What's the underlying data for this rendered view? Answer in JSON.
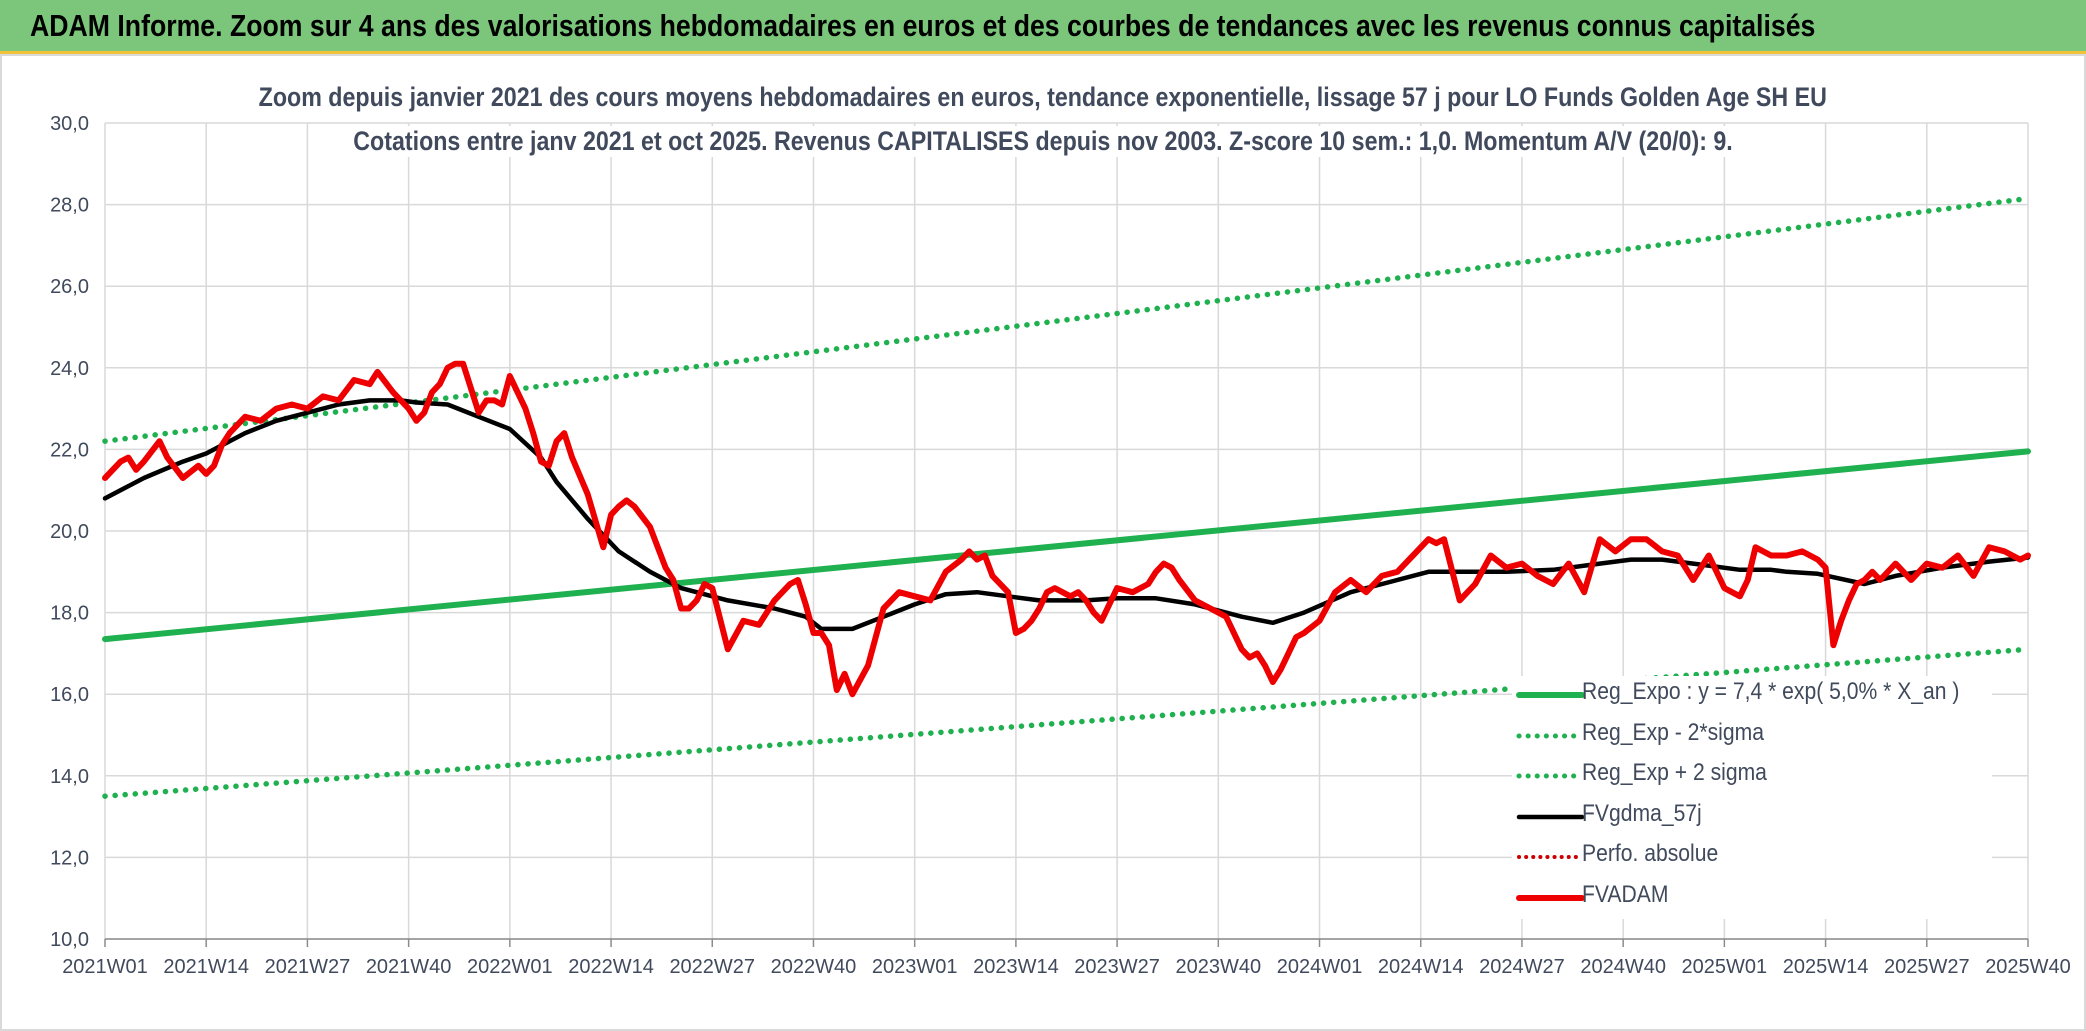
{
  "banner": {
    "title": "ADAM Informe. Zoom sur 4 ans des valorisations hebdomadaires en euros et des courbes de tendances avec les revenus connus capitalisés"
  },
  "colors": {
    "banner_bg": "#7bc67b",
    "banner_accent": "#f2c23a",
    "trend": "#1fb04f",
    "fvadam": "#ee0000",
    "fvgdma": "#000000",
    "perfo": "#cc0000",
    "grid": "#d9d9d9",
    "text": "#404a5c"
  },
  "chart_data": {
    "type": "line",
    "title": "Zoom depuis janvier 2021 des cours moyens hebdomadaires en euros, tendance exponentielle, lissage 57 j pour LO Funds Golden Age SH EU",
    "subtitle": "Cotations entre janv 2021 et oct 2025. Revenus CAPITALISES depuis nov 2003. Z-score 10 sem.: 1,0. Momentum A/V (20/0): 9.",
    "ylim": [
      10,
      30
    ],
    "y_ticks": [
      "10,0",
      "12,0",
      "14,0",
      "16,0",
      "18,0",
      "20,0",
      "22,0",
      "24,0",
      "26,0",
      "28,0",
      "30,0"
    ],
    "x_ticks": [
      "2021W01",
      "2021W14",
      "2021W27",
      "2021W40",
      "2022W01",
      "2022W14",
      "2022W27",
      "2022W40",
      "2023W01",
      "2023W14",
      "2023W27",
      "2023W40",
      "2024W01",
      "2024W14",
      "2024W27",
      "2024W40",
      "2025W01",
      "2025W14",
      "2025W27",
      "2025W40"
    ],
    "x_range_weeks": [
      0,
      247
    ],
    "legend": [
      {
        "name": "Reg_Expo : y = 7,4 * exp( 5,0% *  X_an )",
        "style": "solid-green"
      },
      {
        "name": "Reg_Exp - 2*sigma",
        "style": "dotted-green"
      },
      {
        "name": "Reg_Exp + 2 sigma",
        "style": "dotted-green"
      },
      {
        "name": "FVgdma_57j",
        "style": "solid-black"
      },
      {
        "name": "Perfo. absolue",
        "style": "dotted-red"
      },
      {
        "name": "FVADAM",
        "style": "solid-red"
      }
    ],
    "series": [
      {
        "name": "Reg_Expo",
        "x": [
          0,
          247
        ],
        "values": [
          17.35,
          21.95
        ]
      },
      {
        "name": "Reg_Exp - 2*sigma",
        "x": [
          0,
          247
        ],
        "values": [
          13.5,
          17.1
        ]
      },
      {
        "name": "Reg_Exp + 2 sigma",
        "x": [
          0,
          247
        ],
        "values": [
          22.2,
          28.15
        ]
      },
      {
        "name": "FVgdma_57j",
        "x": [
          0,
          5,
          10,
          13,
          18,
          22,
          26,
          30,
          34,
          38,
          40,
          44,
          46,
          48,
          52,
          56,
          58,
          62,
          66,
          70,
          74,
          80,
          86,
          90,
          92,
          96,
          100,
          104,
          108,
          112,
          116,
          120,
          126,
          130,
          135,
          140,
          146,
          150,
          154,
          160,
          166,
          170,
          174,
          180,
          186,
          192,
          196,
          200,
          204,
          210,
          214,
          216,
          220,
          226,
          230,
          236,
          242,
          247
        ],
        "values": [
          20.8,
          21.3,
          21.7,
          21.9,
          22.4,
          22.7,
          22.9,
          23.1,
          23.2,
          23.2,
          23.15,
          23.1,
          22.95,
          22.8,
          22.5,
          21.8,
          21.2,
          20.3,
          19.5,
          19.0,
          18.6,
          18.3,
          18.1,
          17.9,
          17.6,
          17.6,
          17.9,
          18.2,
          18.45,
          18.5,
          18.4,
          18.3,
          18.3,
          18.35,
          18.35,
          18.2,
          17.9,
          17.75,
          18.0,
          18.5,
          18.8,
          19.0,
          19.0,
          19.0,
          19.05,
          19.2,
          19.3,
          19.3,
          19.2,
          19.05,
          19.05,
          19.0,
          18.95,
          18.7,
          18.9,
          19.1,
          19.25,
          19.35
        ]
      },
      {
        "name": "FVADAM",
        "x": [
          0,
          2,
          3,
          4,
          5,
          7,
          8,
          10,
          12,
          13,
          14,
          15,
          16,
          18,
          20,
          22,
          24,
          26,
          28,
          30,
          32,
          34,
          35,
          37,
          39,
          40,
          41,
          42,
          43,
          44,
          45,
          46,
          47,
          48,
          49,
          50,
          51,
          52,
          53,
          54,
          55,
          56,
          57,
          58,
          59,
          60,
          62,
          64,
          65,
          66,
          67,
          68,
          70,
          72,
          73,
          74,
          75,
          76,
          77,
          78,
          80,
          82,
          84,
          86,
          87,
          88,
          89,
          90,
          91,
          92,
          93,
          94,
          95,
          96,
          98,
          100,
          102,
          104,
          106,
          108,
          110,
          111,
          112,
          113,
          114,
          116,
          117,
          118,
          119,
          120,
          121,
          122,
          124,
          125,
          126,
          127,
          128,
          130,
          132,
          134,
          135,
          136,
          137,
          138,
          140,
          142,
          144,
          146,
          147,
          148,
          149,
          150,
          151,
          152,
          153,
          154,
          156,
          158,
          160,
          162,
          164,
          166,
          168,
          170,
          171,
          172,
          174,
          176,
          178,
          180,
          182,
          184,
          186,
          188,
          190,
          192,
          194,
          196,
          198,
          200,
          202,
          204,
          206,
          208,
          210,
          211,
          212,
          214,
          216,
          218,
          220,
          221,
          222,
          223,
          224,
          225,
          226,
          227,
          228,
          230,
          232,
          234,
          236,
          238,
          240,
          242,
          244,
          246,
          247
        ],
        "values": [
          21.3,
          21.7,
          21.8,
          21.5,
          21.7,
          22.2,
          21.8,
          21.3,
          21.6,
          21.4,
          21.6,
          22.1,
          22.4,
          22.8,
          22.7,
          23.0,
          23.1,
          23.0,
          23.3,
          23.2,
          23.7,
          23.6,
          23.9,
          23.4,
          23.0,
          22.7,
          22.9,
          23.4,
          23.6,
          24.0,
          24.1,
          24.1,
          23.5,
          22.9,
          23.2,
          23.2,
          23.1,
          23.8,
          23.4,
          23.0,
          22.4,
          21.7,
          21.6,
          22.2,
          22.4,
          21.8,
          20.9,
          19.6,
          20.4,
          20.6,
          20.75,
          20.6,
          20.1,
          19.1,
          18.8,
          18.1,
          18.1,
          18.3,
          18.7,
          18.6,
          17.1,
          17.8,
          17.7,
          18.3,
          18.5,
          18.7,
          18.8,
          18.2,
          17.5,
          17.5,
          17.2,
          16.1,
          16.5,
          16.0,
          16.7,
          18.1,
          18.5,
          18.4,
          18.3,
          19.0,
          19.3,
          19.5,
          19.3,
          19.4,
          18.9,
          18.5,
          17.5,
          17.6,
          17.8,
          18.1,
          18.5,
          18.6,
          18.4,
          18.5,
          18.3,
          18.0,
          17.8,
          18.6,
          18.5,
          18.7,
          19.0,
          19.2,
          19.1,
          18.8,
          18.3,
          18.1,
          17.9,
          17.1,
          16.9,
          17.0,
          16.7,
          16.3,
          16.6,
          17.0,
          17.4,
          17.5,
          17.8,
          18.5,
          18.8,
          18.5,
          18.9,
          19.0,
          19.4,
          19.8,
          19.7,
          19.8,
          18.3,
          18.7,
          19.4,
          19.1,
          19.2,
          18.9,
          18.7,
          19.2,
          18.5,
          19.8,
          19.5,
          19.8,
          19.8,
          19.5,
          19.4,
          18.8,
          19.4,
          18.6,
          18.4,
          18.8,
          19.6,
          19.4,
          19.4,
          19.5,
          19.3,
          19.1,
          17.2,
          17.8,
          18.3,
          18.7,
          18.8,
          19.0,
          18.8,
          19.2,
          18.8,
          19.2,
          19.1,
          19.4,
          18.9,
          19.6,
          19.5,
          19.3,
          19.4
        ]
      },
      {
        "name": "Perfo. absolue",
        "x": [],
        "values": []
      }
    ]
  }
}
